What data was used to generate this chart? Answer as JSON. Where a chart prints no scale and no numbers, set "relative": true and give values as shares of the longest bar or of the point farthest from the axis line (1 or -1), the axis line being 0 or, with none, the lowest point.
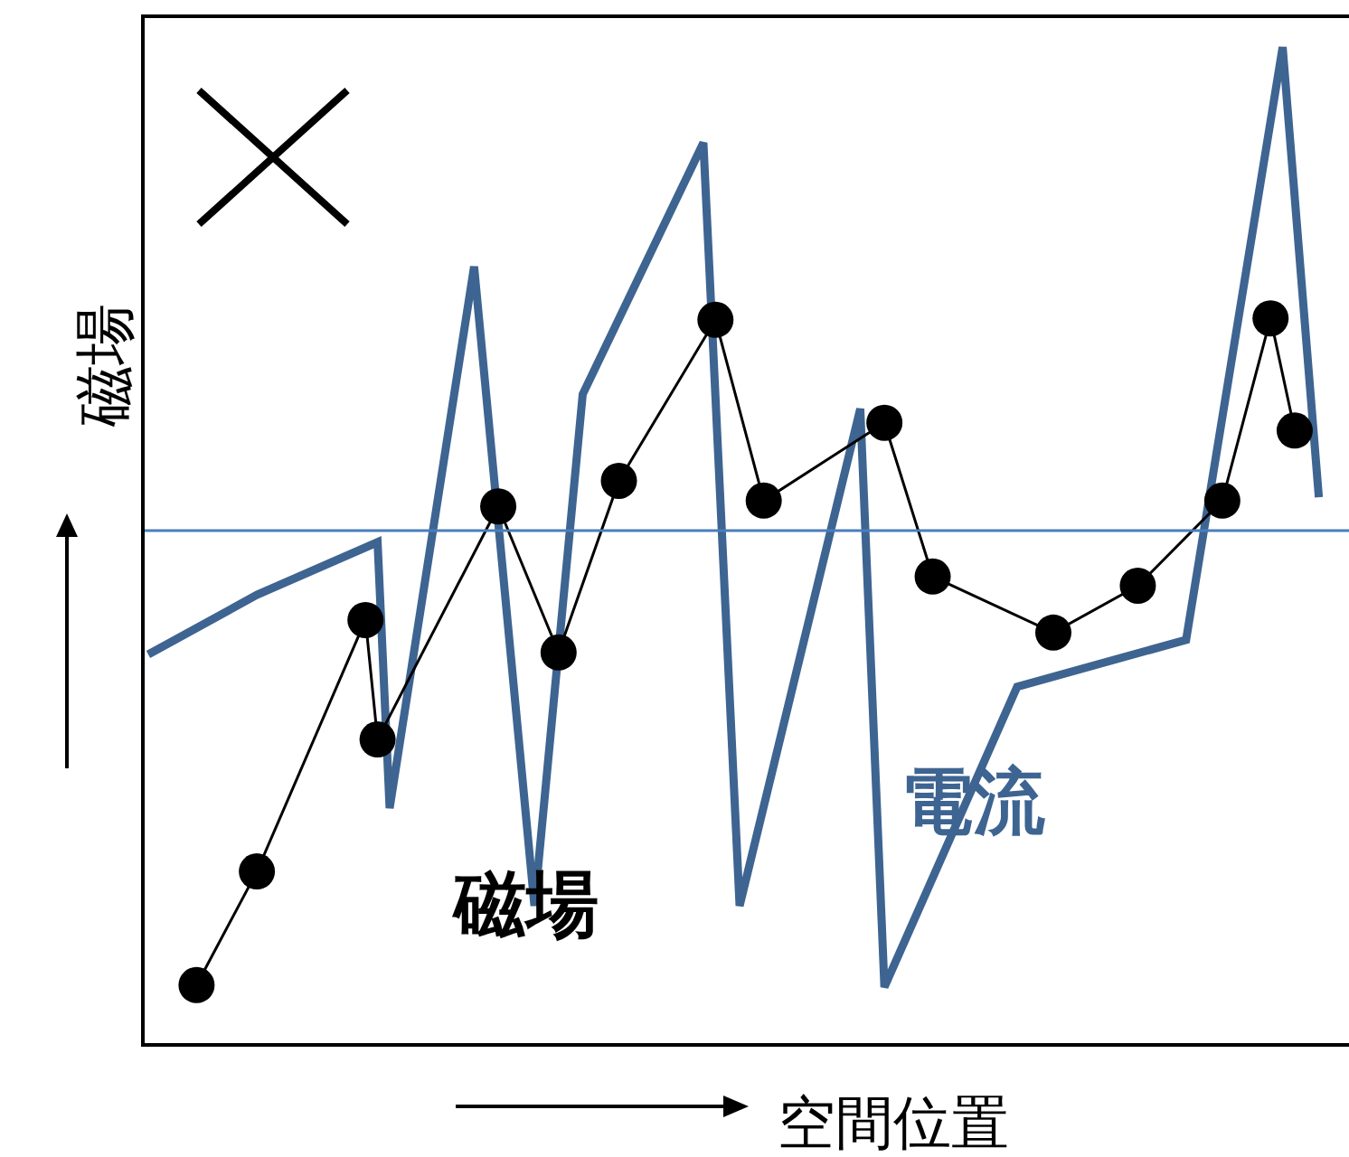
{
  "chart_data": {
    "type": "line",
    "relative": true,
    "xlabel": "空間位置",
    "ylabel": "磁場",
    "legend": false,
    "categories": [
      null,
      null,
      null,
      null,
      null,
      null,
      null,
      null,
      null,
      null,
      null,
      null,
      null,
      null,
      null,
      null,
      null,
      null,
      null,
      null,
      null,
      null,
      null,
      null,
      null,
      null,
      null,
      null,
      null,
      null,
      null,
      null,
      null,
      null,
      null,
      null,
      null,
      null,
      null,
      null,
      null,
      null,
      null,
      null,
      null,
      null,
      null,
      null,
      null,
      null,
      null,
      null,
      null,
      null,
      null,
      null,
      null,
      null,
      null,
      null,
      null,
      null,
      null,
      null,
      null,
      null,
      null,
      null,
      null,
      null,
      null,
      null,
      null,
      null,
      null,
      null,
      null,
      null,
      null,
      null,
      null,
      null,
      null,
      null,
      null,
      null,
      null,
      null,
      null,
      null,
      null,
      null,
      null,
      null,
      null,
      null,
      null,
      null,
      null,
      null
    ],
    "series": [
      {
        "name": "電流",
        "color": "#3e6491",
        "marker": "none",
        "values": [
          -0.256,
          null,
          null,
          null,
          null,
          null,
          null,
          null,
          null,
          -0.133,
          null,
          null,
          null,
          null,
          null,
          null,
          null,
          null,
          null,
          -0.024,
          -0.574,
          null,
          null,
          null,
          null,
          null,
          null,
          0.546,
          null,
          null,
          null,
          null,
          -0.776,
          null,
          null,
          null,
          0.282,
          null,
          null,
          null,
          null,
          null,
          null,
          null,
          null,
          null,
          0.802,
          null,
          null,
          -0.776,
          null,
          null,
          null,
          null,
          null,
          null,
          null,
          null,
          null,
          0.252,
          null,
          -0.944,
          null,
          null,
          null,
          null,
          null,
          null,
          null,
          null,
          null,
          null,
          -0.323,
          null,
          null,
          null,
          null,
          null,
          null,
          null,
          null,
          null,
          null,
          null,
          null,
          null,
          -0.226,
          null,
          null,
          null,
          null,
          null,
          null,
          null,
          1,
          null,
          null,
          0.069,
          null,
          null
        ]
      },
      {
        "name": "磁場",
        "color": "#000000",
        "marker": "circle",
        "values": [
          null,
          null,
          null,
          null,
          -0.94,
          null,
          null,
          null,
          null,
          -0.705,
          null,
          null,
          null,
          null,
          null,
          null,
          null,
          null,
          -0.185,
          -0.432,
          null,
          null,
          null,
          null,
          null,
          null,
          null,
          null,
          null,
          0.05,
          null,
          null,
          null,
          null,
          -0.252,
          null,
          null,
          null,
          null,
          0.103,
          null,
          null,
          null,
          null,
          null,
          null,
          null,
          0.436,
          null,
          null,
          null,
          0.062,
          null,
          null,
          null,
          null,
          null,
          null,
          null,
          null,
          null,
          0.223,
          null,
          null,
          null,
          -0.095,
          null,
          null,
          null,
          null,
          null,
          null,
          null,
          null,
          null,
          -0.211,
          null,
          null,
          null,
          null,
          null,
          null,
          -0.114,
          null,
          null,
          null,
          null,
          null,
          null,
          0.062,
          null,
          null,
          null,
          0.439,
          null,
          0.207,
          null,
          null,
          null,
          null
        ]
      }
    ],
    "ref_lines": [
      {
        "axis": "y",
        "value": 0,
        "color": "#4a7ebb"
      }
    ]
  }
}
